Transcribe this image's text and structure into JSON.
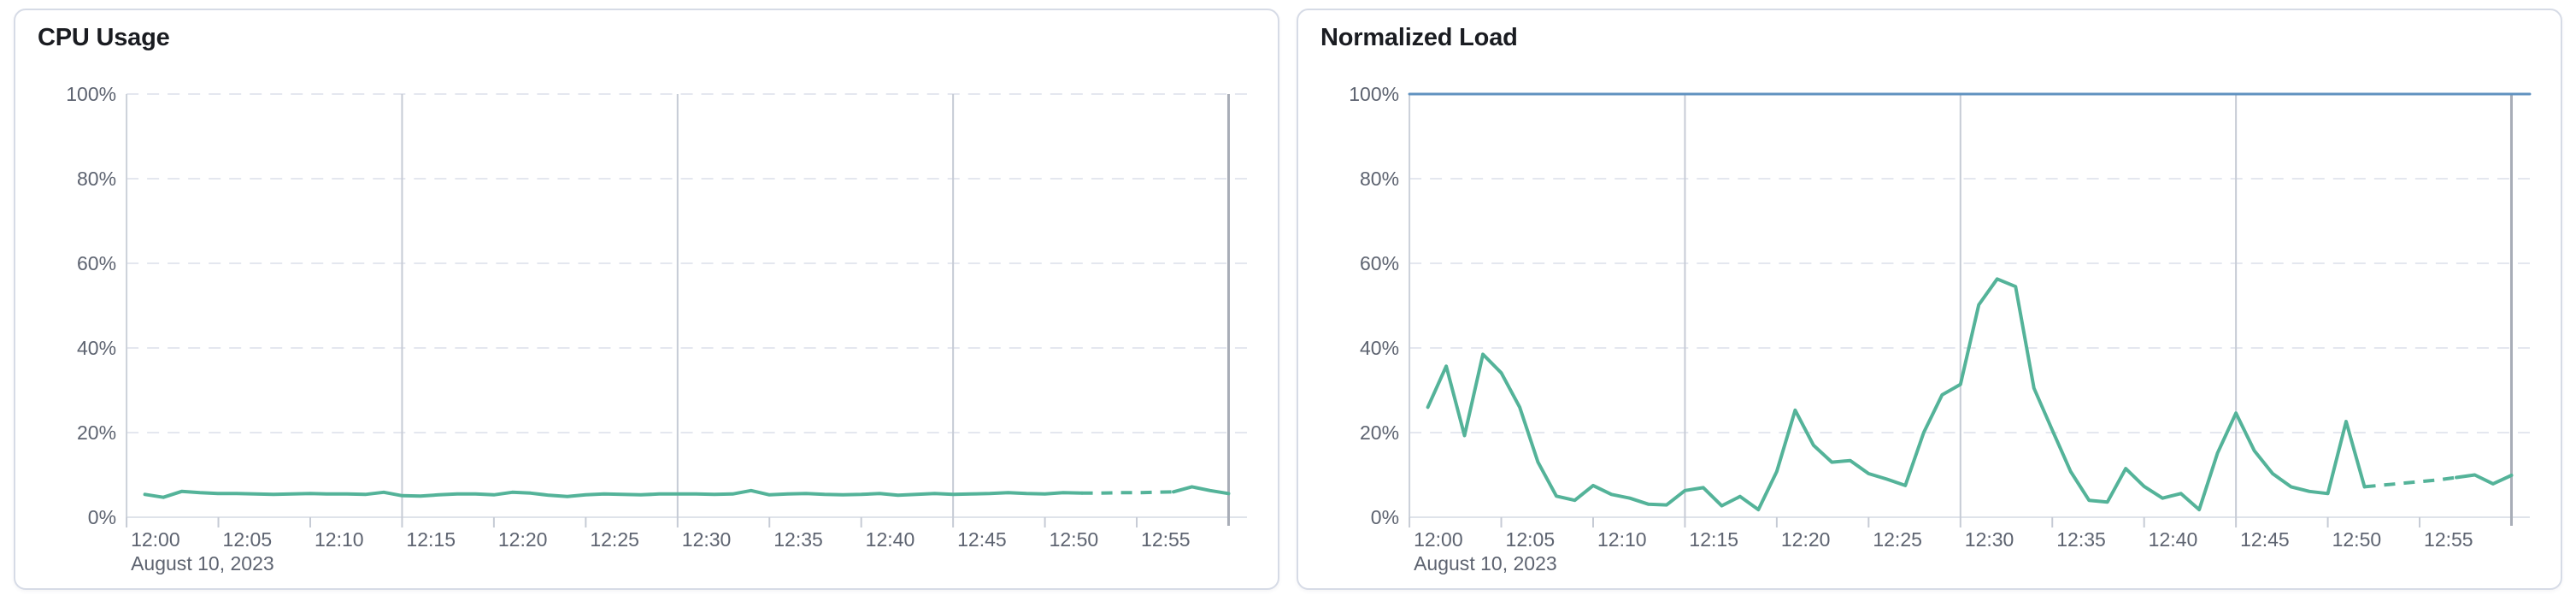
{
  "chart_data": [
    {
      "type": "line",
      "title": "CPU Usage",
      "date_label": "August 10, 2023",
      "y_range": [
        0,
        100
      ],
      "x_range_minutes": [
        0,
        61
      ],
      "grid": "dashed-horizontal",
      "legend": "none",
      "y_ticks": [
        {
          "v": 0,
          "label": "0%"
        },
        {
          "v": 20,
          "label": "20%"
        },
        {
          "v": 40,
          "label": "40%"
        },
        {
          "v": 60,
          "label": "60%"
        },
        {
          "v": 80,
          "label": "80%"
        },
        {
          "v": 100,
          "label": "100%"
        }
      ],
      "x_ticks": [
        {
          "t": 0,
          "label": "12:00"
        },
        {
          "t": 5,
          "label": "12:05"
        },
        {
          "t": 10,
          "label": "12:10"
        },
        {
          "t": 15,
          "label": "12:15"
        },
        {
          "t": 20,
          "label": "12:20"
        },
        {
          "t": 25,
          "label": "12:25"
        },
        {
          "t": 30,
          "label": "12:30"
        },
        {
          "t": 35,
          "label": "12:35"
        },
        {
          "t": 40,
          "label": "12:40"
        },
        {
          "t": 45,
          "label": "12:45"
        },
        {
          "t": 50,
          "label": "12:50"
        },
        {
          "t": 55,
          "label": "12:55"
        }
      ],
      "grid_verticals_minutes": [
        15,
        30,
        45
      ],
      "end_line_minute": 60,
      "series": [
        {
          "color": "#54B399",
          "width": 4,
          "dashed_minutes": [
            52,
            57
          ],
          "points": [
            [
              1,
              5.4
            ],
            [
              2,
              4.7
            ],
            [
              3,
              6.1
            ],
            [
              4,
              5.8
            ],
            [
              5,
              5.6
            ],
            [
              6,
              5.6
            ],
            [
              7,
              5.5
            ],
            [
              8,
              5.4
            ],
            [
              9,
              5.5
            ],
            [
              10,
              5.6
            ],
            [
              11,
              5.5
            ],
            [
              12,
              5.5
            ],
            [
              13,
              5.4
            ],
            [
              14,
              5.9
            ],
            [
              15,
              5.1
            ],
            [
              16,
              5.0
            ],
            [
              17,
              5.3
            ],
            [
              18,
              5.5
            ],
            [
              19,
              5.5
            ],
            [
              20,
              5.3
            ],
            [
              21,
              5.9
            ],
            [
              22,
              5.7
            ],
            [
              23,
              5.2
            ],
            [
              24,
              4.9
            ],
            [
              25,
              5.3
            ],
            [
              26,
              5.5
            ],
            [
              27,
              5.4
            ],
            [
              28,
              5.3
            ],
            [
              29,
              5.5
            ],
            [
              30,
              5.5
            ],
            [
              31,
              5.5
            ],
            [
              32,
              5.4
            ],
            [
              33,
              5.5
            ],
            [
              34,
              6.3
            ],
            [
              35,
              5.3
            ],
            [
              36,
              5.5
            ],
            [
              37,
              5.6
            ],
            [
              38,
              5.4
            ],
            [
              39,
              5.3
            ],
            [
              40,
              5.4
            ],
            [
              41,
              5.6
            ],
            [
              42,
              5.2
            ],
            [
              43,
              5.4
            ],
            [
              44,
              5.6
            ],
            [
              45,
              5.4
            ],
            [
              46,
              5.5
            ],
            [
              47,
              5.6
            ],
            [
              48,
              5.8
            ],
            [
              49,
              5.6
            ],
            [
              50,
              5.5
            ],
            [
              51,
              5.8
            ],
            [
              52,
              5.7
            ],
            [
              53,
              5.7
            ],
            [
              54,
              5.8
            ],
            [
              55,
              5.8
            ],
            [
              56,
              5.9
            ],
            [
              57,
              6.0
            ],
            [
              58,
              7.2
            ],
            [
              59,
              6.3
            ],
            [
              60,
              5.6
            ]
          ]
        }
      ]
    },
    {
      "type": "line",
      "title": "Normalized Load",
      "date_label": "August 10, 2023",
      "y_range": [
        0,
        100
      ],
      "x_range_minutes": [
        0,
        61
      ],
      "grid": "dashed-horizontal",
      "legend": "none",
      "y_ticks": [
        {
          "v": 0,
          "label": "0%"
        },
        {
          "v": 20,
          "label": "20%"
        },
        {
          "v": 40,
          "label": "40%"
        },
        {
          "v": 60,
          "label": "60%"
        },
        {
          "v": 80,
          "label": "80%"
        },
        {
          "v": 100,
          "label": "100%"
        }
      ],
      "x_ticks": [
        {
          "t": 0,
          "label": "12:00"
        },
        {
          "t": 5,
          "label": "12:05"
        },
        {
          "t": 10,
          "label": "12:10"
        },
        {
          "t": 15,
          "label": "12:15"
        },
        {
          "t": 20,
          "label": "12:20"
        },
        {
          "t": 25,
          "label": "12:25"
        },
        {
          "t": 30,
          "label": "12:30"
        },
        {
          "t": 35,
          "label": "12:35"
        },
        {
          "t": 40,
          "label": "12:40"
        },
        {
          "t": 45,
          "label": "12:45"
        },
        {
          "t": 50,
          "label": "12:50"
        },
        {
          "t": 55,
          "label": "12:55"
        }
      ],
      "grid_verticals_minutes": [
        15,
        30,
        45
      ],
      "end_line_minute": 60,
      "series": [
        {
          "color": "#6092C0",
          "width": 3,
          "points": [
            [
              0,
              100
            ],
            [
              61,
              100
            ]
          ]
        },
        {
          "color": "#54B399",
          "width": 4,
          "dashed_minutes": [
            52,
            57
          ],
          "points": [
            [
              1,
              26.0
            ],
            [
              2,
              35.7
            ],
            [
              3,
              19.3
            ],
            [
              4,
              38.5
            ],
            [
              5,
              34.1
            ],
            [
              6,
              26.0
            ],
            [
              7,
              13.0
            ],
            [
              8,
              5.0
            ],
            [
              9,
              4.0
            ],
            [
              10,
              7.5
            ],
            [
              11,
              5.4
            ],
            [
              12,
              4.5
            ],
            [
              13,
              3.1
            ],
            [
              14,
              2.9
            ],
            [
              15,
              6.3
            ],
            [
              16,
              7.0
            ],
            [
              17,
              2.7
            ],
            [
              18,
              4.9
            ],
            [
              19,
              1.8
            ],
            [
              20,
              10.8
            ],
            [
              21,
              25.3
            ],
            [
              22,
              17.0
            ],
            [
              23,
              13.0
            ],
            [
              24,
              13.4
            ],
            [
              25,
              10.3
            ],
            [
              26,
              9.0
            ],
            [
              27,
              7.5
            ],
            [
              28,
              20.0
            ],
            [
              29,
              28.9
            ],
            [
              30,
              31.4
            ],
            [
              31,
              50.2
            ],
            [
              32,
              56.3
            ],
            [
              33,
              54.5
            ],
            [
              34,
              30.5
            ],
            [
              35,
              20.6
            ],
            [
              36,
              10.8
            ],
            [
              37,
              4.0
            ],
            [
              38,
              3.6
            ],
            [
              39,
              11.5
            ],
            [
              40,
              7.3
            ],
            [
              41,
              4.5
            ],
            [
              42,
              5.6
            ],
            [
              43,
              1.8
            ],
            [
              44,
              15.2
            ],
            [
              45,
              24.6
            ],
            [
              46,
              15.7
            ],
            [
              47,
              10.3
            ],
            [
              48,
              7.2
            ],
            [
              49,
              6.1
            ],
            [
              50,
              5.6
            ],
            [
              51,
              22.6
            ],
            [
              52,
              7.2
            ],
            [
              53,
              7.6
            ],
            [
              54,
              8.0
            ],
            [
              55,
              8.4
            ],
            [
              56,
              8.8
            ],
            [
              57,
              9.4
            ],
            [
              58,
              10.0
            ],
            [
              59,
              7.9
            ],
            [
              60,
              9.9
            ]
          ]
        }
      ]
    }
  ]
}
